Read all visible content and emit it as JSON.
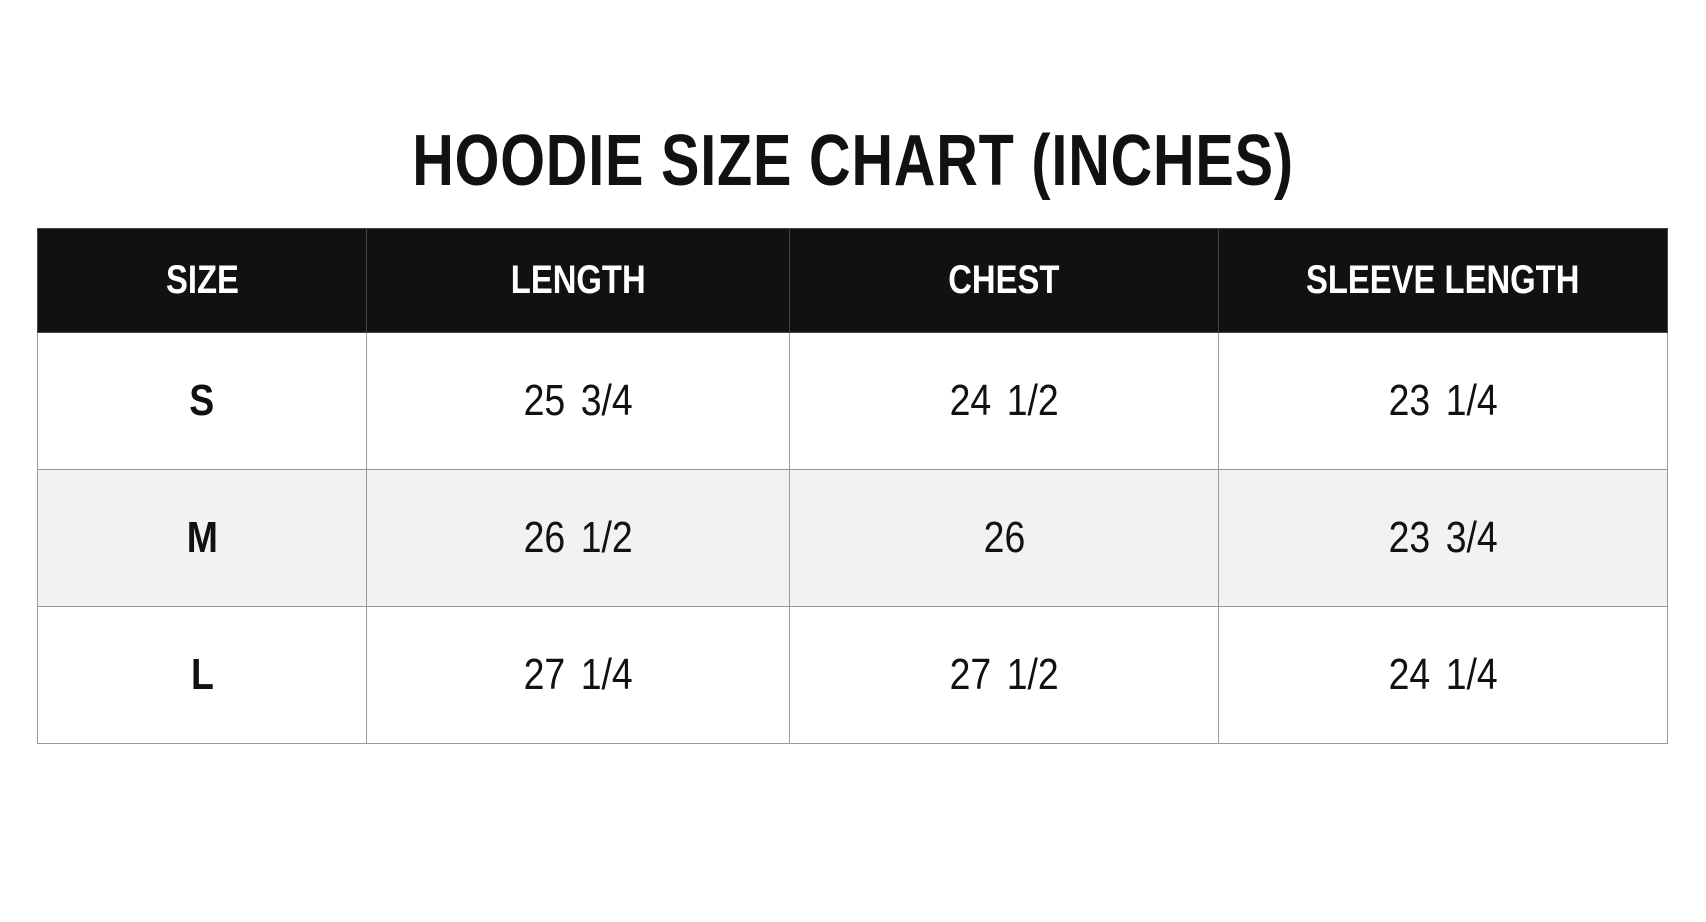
{
  "header": {
    "title": "HOODIE SIZE CHART (INCHES)"
  },
  "table": {
    "columns": [
      "SIZE",
      "LENGTH",
      "CHEST",
      "SLEEVE LENGTH"
    ],
    "rows": [
      [
        "S",
        "25 3/4",
        "24 1/2",
        "23 1/4"
      ],
      [
        "M",
        "26 1/2",
        "26",
        "23 3/4"
      ],
      [
        "L",
        "27 1/4",
        "27 1/2",
        "24 1/4"
      ]
    ]
  }
}
